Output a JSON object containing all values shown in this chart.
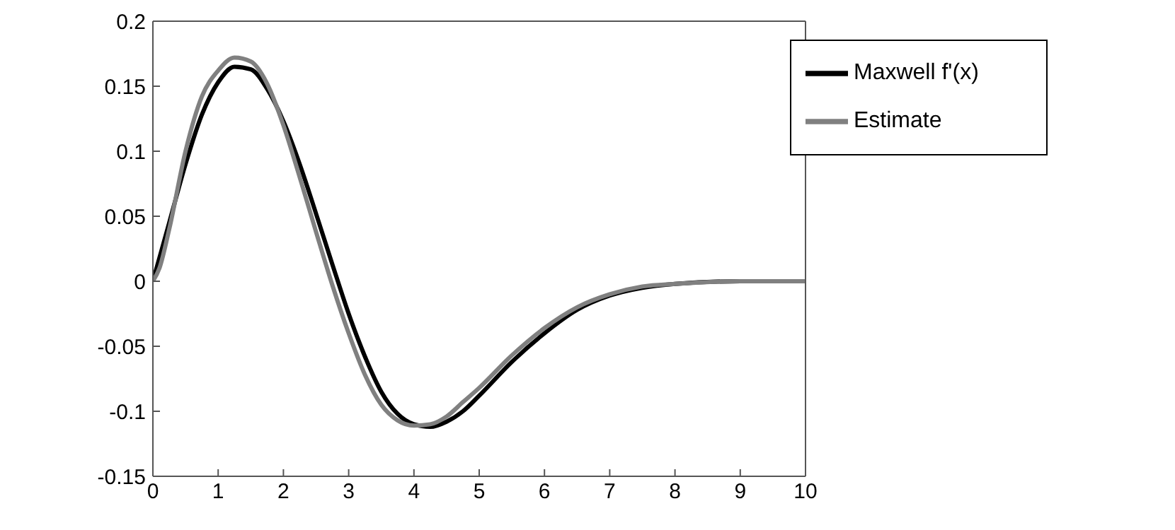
{
  "chart_data": {
    "type": "line",
    "xlim": [
      0,
      10
    ],
    "xticks": [
      0,
      1,
      2,
      3,
      4,
      5,
      6,
      7,
      8,
      9,
      10
    ],
    "ylim": [
      -0.15,
      0.2
    ],
    "yticks": [
      -0.15,
      -0.1,
      -0.05,
      0,
      0.05,
      0.1,
      0.15,
      0.2
    ],
    "legend": "top right",
    "grid": false,
    "marker": "none",
    "line_style": "solid",
    "series": [
      {
        "name": "Maxwell f'(x)",
        "color": "#000000",
        "x": [
          0,
          0.25,
          0.5,
          0.75,
          1,
          1.25,
          1.5,
          1.75,
          2,
          2.25,
          2.5,
          2.75,
          3,
          3.25,
          3.5,
          3.75,
          4,
          4.25,
          4.5,
          4.75,
          5,
          5.5,
          6,
          6.5,
          7,
          7.5,
          8,
          9,
          10
        ],
        "values": [
          0,
          0.045,
          0.09,
          0.128,
          0.153,
          0.165,
          0.163,
          0.148,
          0.123,
          0.09,
          0.052,
          0.013,
          -0.025,
          -0.058,
          -0.085,
          -0.102,
          -0.11,
          -0.112,
          -0.108,
          -0.1,
          -0.088,
          -0.062,
          -0.04,
          -0.022,
          -0.011,
          -0.005,
          -0.002,
          0,
          0
        ]
      },
      {
        "name": "Estimate",
        "color": "#808080",
        "x": [
          0,
          0.1,
          0.25,
          0.5,
          0.75,
          1,
          1.25,
          1.5,
          1.75,
          2,
          2.25,
          2.5,
          2.75,
          3,
          3.25,
          3.5,
          3.75,
          4,
          4.25,
          4.5,
          4.75,
          5,
          5.5,
          6,
          6.5,
          7,
          7.5,
          8,
          9,
          10
        ],
        "values": [
          0,
          0.01,
          0.04,
          0.1,
          0.142,
          0.162,
          0.172,
          0.169,
          0.152,
          0.12,
          0.08,
          0.038,
          -0.003,
          -0.04,
          -0.072,
          -0.095,
          -0.107,
          -0.111,
          -0.11,
          -0.104,
          -0.093,
          -0.082,
          -0.057,
          -0.036,
          -0.02,
          -0.01,
          -0.004,
          -0.002,
          0,
          0
        ]
      }
    ]
  }
}
